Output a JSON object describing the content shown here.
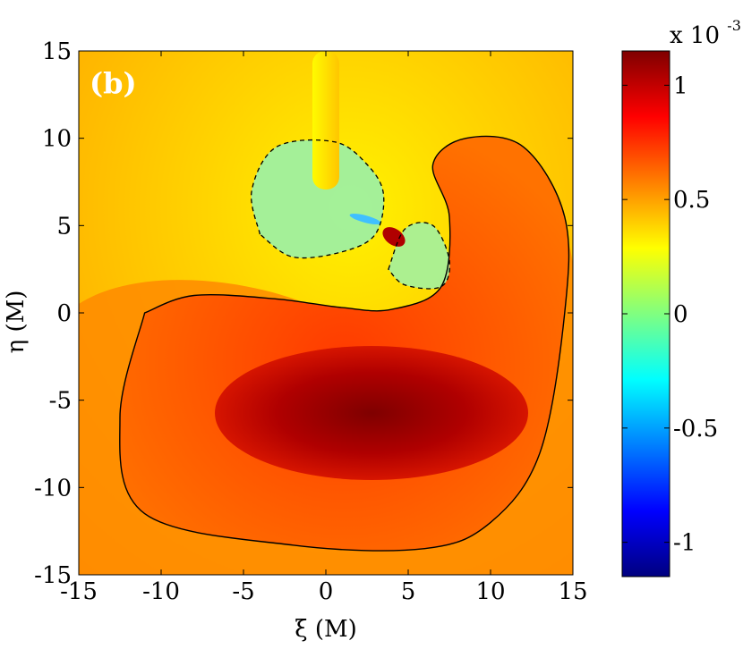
{
  "chart_data": {
    "type": "heatmap",
    "panel_label": "(b)",
    "xlabel": "ξ (M)",
    "ylabel": "η (M)",
    "xlim": [
      -15,
      15
    ],
    "ylim": [
      -15,
      15
    ],
    "xticks": [
      -15,
      -10,
      -5,
      0,
      5,
      10,
      15
    ],
    "yticks": [
      15,
      10,
      5,
      0,
      -5,
      -10,
      -15
    ],
    "xtick_labels": [
      "-15",
      "-10",
      "-5",
      "0",
      "5",
      "10",
      "15"
    ],
    "ytick_labels": [
      "15",
      "10",
      "5",
      "0",
      "-5",
      "-10",
      "-15"
    ],
    "colorbar": {
      "range": [
        -1.15,
        1.15
      ],
      "ticks": [
        1,
        0.5,
        0,
        -0.5,
        -1
      ],
      "tick_labels": [
        "1",
        "0.5",
        "0",
        "-0.5",
        "-1"
      ],
      "multiplier_base": "x 10",
      "multiplier_exp": "-3",
      "colormap": "jet"
    },
    "contours": [
      {
        "level": "solid",
        "path_data": [
          [
            -11,
            0
          ],
          [
            -12.5,
            -6
          ],
          [
            -11,
            -11.5
          ],
          [
            -2,
            -13.3
          ],
          [
            6,
            -13.5
          ],
          [
            10,
            -12
          ],
          [
            13,
            -8
          ],
          [
            14.5,
            0
          ],
          [
            14.5,
            5.5
          ],
          [
            12,
            9.5
          ],
          [
            8.5,
            10
          ],
          [
            6.5,
            8.5
          ],
          [
            7.5,
            5.5
          ],
          [
            7,
            1.5
          ],
          [
            4,
            0.2
          ],
          [
            1,
            0.3
          ],
          [
            -3,
            0.8
          ],
          [
            -8,
            1
          ],
          [
            -11,
            0
          ]
        ]
      },
      {
        "level": "dashed",
        "path_data": [
          [
            -4,
            4.5
          ],
          [
            -4.5,
            7
          ],
          [
            -3,
            9.5
          ],
          [
            0.5,
            9.8
          ],
          [
            2.5,
            8.5
          ],
          [
            3.5,
            6.8
          ],
          [
            3,
            4.5
          ],
          [
            1,
            3.5
          ],
          [
            -2,
            3.2
          ],
          [
            -4,
            4.5
          ]
        ]
      },
      {
        "level": "dashed",
        "path_data": [
          [
            3.8,
            2.5
          ],
          [
            4.8,
            4.8
          ],
          [
            6.5,
            5
          ],
          [
            7.5,
            3
          ],
          [
            7,
            1.5
          ],
          [
            4.8,
            1.6
          ],
          [
            3.8,
            2.5
          ]
        ]
      }
    ]
  }
}
